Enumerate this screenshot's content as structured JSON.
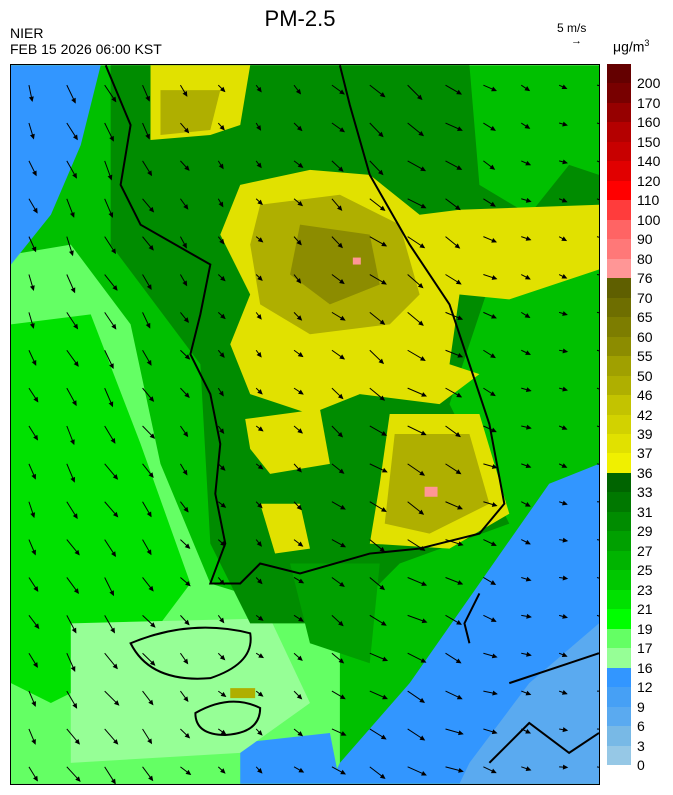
{
  "header": {
    "title": "PM-2.5",
    "agency": "NIER",
    "datetime": "FEB 15 2026 06:00 KST",
    "wind_reference": "5 m/s",
    "wind_reference_icon": "arrow-right-icon",
    "unit": "μg/m",
    "unit_exponent": "3"
  },
  "colorbar": {
    "labels": [
      "200",
      "170",
      "160",
      "150",
      "140",
      "120",
      "110",
      "100",
      "90",
      "80",
      "76",
      "70",
      "65",
      "60",
      "55",
      "50",
      "46",
      "42",
      "39",
      "37",
      "36",
      "33",
      "31",
      "29",
      "27",
      "25",
      "23",
      "21",
      "19",
      "17",
      "16",
      "12",
      "9",
      "6",
      "3",
      "0"
    ],
    "colors": [
      "#640000",
      "#780000",
      "#960000",
      "#b40000",
      "#c80000",
      "#e10000",
      "#ff0000",
      "#ff3c3c",
      "#ff6464",
      "#ff7878",
      "#ff9696",
      "#5f5f00",
      "#6e6e00",
      "#7d7d00",
      "#8c8c00",
      "#a0a000",
      "#afaf00",
      "#c3c300",
      "#d2d200",
      "#e1e100",
      "#f0f000",
      "#006400",
      "#007800",
      "#008c00",
      "#00a000",
      "#00b400",
      "#00c800",
      "#00e100",
      "#00ff00",
      "#64ff64",
      "#96ff96",
      "#3296ff",
      "#46a0f5",
      "#5aaaf0",
      "#78b9e6",
      "#96c8e6"
    ]
  },
  "map": {
    "colors": {
      "background": "#00c000",
      "dark_green": "#008c00",
      "mid_green": "#00a000",
      "bright_green": "#00e100",
      "light_green": "#64ff64",
      "pale_green": "#96ff96",
      "blue": "#3296ff",
      "light_blue": "#5aaaf0",
      "yellow": "#e1e100",
      "olive": "#afaf00",
      "dark_olive": "#8c8c00",
      "pink": "#ff9696",
      "coast": "#000000"
    }
  }
}
